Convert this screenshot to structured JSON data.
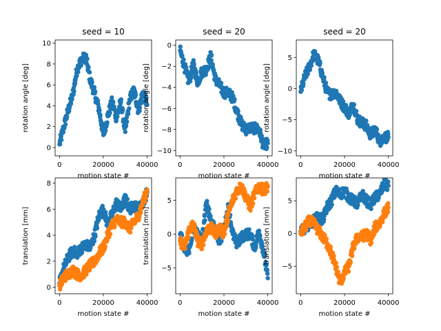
{
  "colors": {
    "series_1": "#1f77b4",
    "series_2": "#ff7f0e",
    "axis": "#000000",
    "background": "#ffffff"
  },
  "chart_data": [
    {
      "type": "scatter",
      "row": 0,
      "col": 0,
      "title": "seed = 10",
      "xlabel": "motion state #",
      "ylabel": "rotation angle [deg]",
      "xlim": [
        -2000,
        42000
      ],
      "ylim": [
        -0.8,
        10.3
      ],
      "xticks": [
        0,
        20000,
        40000
      ],
      "yticks": [
        0,
        2,
        4,
        6,
        8,
        10
      ],
      "series": [
        {
          "color": "#1f77b4",
          "x": [
            0,
            2000,
            4000,
            6000,
            8000,
            10000,
            12000,
            14000,
            16000,
            18000,
            20000,
            22000,
            24000,
            26000,
            28000,
            30000,
            32000,
            34000,
            36000,
            38000,
            40000
          ],
          "y": [
            0.3,
            2.0,
            3.6,
            5.0,
            7.5,
            8.4,
            8.7,
            6.5,
            5.2,
            3.7,
            1.2,
            3.0,
            4.4,
            2.8,
            4.4,
            1.5,
            4.6,
            5.5,
            3.5,
            5.3,
            4.1
          ]
        }
      ]
    },
    {
      "type": "scatter",
      "row": 0,
      "col": 1,
      "title": "seed = 20",
      "xlabel": "motion state #",
      "ylabel": "rotation angle [deg]",
      "xlim": [
        -2000,
        42000
      ],
      "ylim": [
        -10.5,
        0.5
      ],
      "xticks": [
        0,
        20000,
        40000
      ],
      "yticks": [
        0,
        -2,
        -4,
        -6,
        -8,
        -10
      ],
      "series": [
        {
          "color": "#1f77b4",
          "x": [
            0,
            2000,
            4000,
            6000,
            8000,
            10000,
            12000,
            14000,
            16000,
            18000,
            20000,
            22000,
            24000,
            26000,
            28000,
            30000,
            32000,
            34000,
            36000,
            38000,
            40000
          ],
          "y": [
            -0.5,
            -2.0,
            -3.5,
            -1.8,
            -3.5,
            -2.5,
            -2.3,
            -1.0,
            -3.2,
            -3.8,
            -4.5,
            -4.5,
            -5.0,
            -6.3,
            -7.5,
            -8.0,
            -7.8,
            -7.9,
            -8.0,
            -9.5,
            -9.3
          ]
        }
      ]
    },
    {
      "type": "scatter",
      "row": 0,
      "col": 2,
      "title": "seed = 20",
      "xlabel": "motion state #",
      "ylabel": "rotation angle [deg]",
      "xlim": [
        -2000,
        42000
      ],
      "ylim": [
        -10.8,
        7.8
      ],
      "xticks": [
        0,
        20000,
        40000
      ],
      "yticks": [
        5,
        0,
        -5,
        -10
      ],
      "series": [
        {
          "color": "#1f77b4",
          "x": [
            0,
            2000,
            4000,
            6000,
            8000,
            10000,
            12000,
            14000,
            16000,
            18000,
            20000,
            22000,
            24000,
            26000,
            28000,
            30000,
            32000,
            34000,
            36000,
            38000,
            40000
          ],
          "y": [
            -0.5,
            2.0,
            3.5,
            5.5,
            4.5,
            2.0,
            -0.5,
            -1.0,
            -0.5,
            -2.0,
            -3.0,
            -4.0,
            -2.5,
            -5.0,
            -5.5,
            -6.0,
            -7.5,
            -6.5,
            -8.5,
            -7.8,
            -7.8
          ]
        }
      ]
    },
    {
      "type": "scatter",
      "row": 1,
      "col": 0,
      "title": "",
      "xlabel": "motion state #",
      "ylabel": "translation [mm]",
      "xlim": [
        -2000,
        42000
      ],
      "ylim": [
        -0.5,
        8.4
      ],
      "xticks": [
        0,
        20000,
        40000
      ],
      "yticks": [
        0,
        2,
        4,
        6,
        8
      ],
      "series": [
        {
          "color": "#1f77b4",
          "x": [
            0,
            2000,
            4000,
            6000,
            8000,
            10000,
            12000,
            14000,
            16000,
            18000,
            20000,
            22000,
            24000,
            26000,
            28000,
            30000,
            32000,
            34000,
            36000,
            38000,
            40000
          ],
          "y": [
            0.3,
            1.5,
            2.3,
            2.8,
            2.6,
            3.0,
            3.3,
            3.0,
            4.0,
            5.5,
            6.0,
            4.8,
            5.6,
            6.5,
            6.0,
            6.8,
            6.0,
            6.3,
            6.0,
            6.5,
            7.3
          ]
        },
        {
          "color": "#ff7f0e",
          "x": [
            0,
            2000,
            4000,
            6000,
            8000,
            10000,
            12000,
            14000,
            16000,
            18000,
            20000,
            22000,
            24000,
            26000,
            28000,
            30000,
            32000,
            34000,
            36000,
            38000,
            40000
          ],
          "y": [
            0.1,
            0.8,
            1.0,
            1.3,
            1.0,
            0.9,
            1.3,
            1.7,
            2.0,
            2.6,
            3.0,
            4.0,
            4.8,
            5.2,
            5.0,
            5.0,
            4.5,
            5.0,
            5.5,
            6.5,
            7.5
          ]
        }
      ]
    },
    {
      "type": "scatter",
      "row": 1,
      "col": 1,
      "title": "",
      "xlabel": "motion state #",
      "ylabel": "translation [mm]",
      "xlim": [
        -2000,
        42000
      ],
      "ylim": [
        -8.8,
        8.3
      ],
      "xticks": [
        0,
        20000,
        40000
      ],
      "yticks": [
        5,
        0,
        -5
      ],
      "series": [
        {
          "color": "#1f77b4",
          "x": [
            0,
            2000,
            4000,
            6000,
            8000,
            10000,
            12000,
            14000,
            16000,
            18000,
            20000,
            22000,
            24000,
            26000,
            28000,
            30000,
            32000,
            34000,
            36000,
            38000,
            40000
          ],
          "y": [
            0.0,
            -2.0,
            -2.5,
            1.0,
            0.0,
            -1.0,
            4.5,
            2.0,
            0.5,
            -1.0,
            0.5,
            4.0,
            0.0,
            -1.5,
            -0.5,
            0.0,
            0.0,
            -2.0,
            0.5,
            -2.5,
            -6.5
          ]
        },
        {
          "color": "#ff7f0e",
          "x": [
            0,
            2000,
            4000,
            6000,
            8000,
            10000,
            12000,
            14000,
            16000,
            18000,
            20000,
            22000,
            24000,
            26000,
            28000,
            30000,
            32000,
            34000,
            36000,
            38000,
            40000
          ],
          "y": [
            -1.0,
            -2.0,
            0.5,
            1.5,
            -1.0,
            -1.5,
            0.5,
            1.0,
            0.0,
            1.0,
            0.0,
            3.0,
            5.0,
            6.5,
            7.0,
            5.5,
            4.0,
            6.0,
            7.0,
            6.5,
            7.0
          ]
        }
      ]
    },
    {
      "type": "scatter",
      "row": 1,
      "col": 2,
      "title": "",
      "xlabel": "motion state #",
      "ylabel": "translation [mm]",
      "xlim": [
        -2000,
        42000
      ],
      "ylim": [
        -9.2,
        8.5
      ],
      "xticks": [
        0,
        20000,
        40000
      ],
      "yticks": [
        5,
        0,
        -5
      ],
      "series": [
        {
          "color": "#1f77b4",
          "x": [
            0,
            2000,
            4000,
            6000,
            8000,
            10000,
            12000,
            14000,
            16000,
            18000,
            20000,
            22000,
            24000,
            26000,
            28000,
            30000,
            32000,
            34000,
            36000,
            38000,
            40000
          ],
          "y": [
            0.3,
            0.8,
            1.5,
            2.0,
            2.5,
            2.0,
            4.0,
            5.0,
            6.5,
            6.0,
            6.5,
            5.5,
            5.0,
            4.5,
            6.0,
            5.0,
            4.5,
            5.5,
            6.0,
            7.5,
            7.3
          ]
        },
        {
          "color": "#ff7f0e",
          "x": [
            0,
            2000,
            4000,
            6000,
            8000,
            10000,
            12000,
            14000,
            16000,
            18000,
            20000,
            22000,
            24000,
            26000,
            28000,
            30000,
            32000,
            34000,
            36000,
            38000,
            40000
          ],
          "y": [
            0.0,
            1.0,
            2.0,
            1.5,
            0.5,
            -0.5,
            -1.5,
            -3.0,
            -5.0,
            -7.5,
            -6.0,
            -5.0,
            -2.0,
            -0.5,
            -0.5,
            0.0,
            -1.0,
            1.0,
            1.5,
            3.0,
            4.0
          ]
        }
      ]
    }
  ]
}
